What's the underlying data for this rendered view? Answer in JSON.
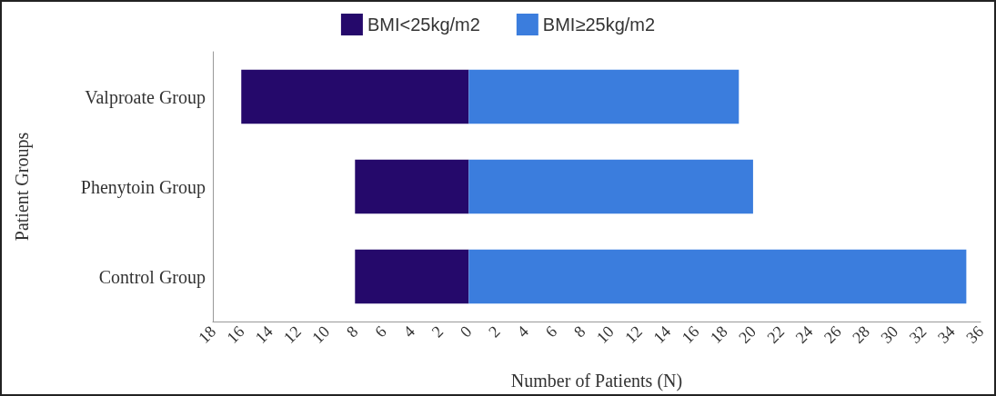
{
  "chart_data": {
    "type": "bar",
    "orientation": "horizontal",
    "stacked": true,
    "categories": [
      "Valproate Group",
      "Phenytoin Group",
      "Control Group"
    ],
    "series": [
      {
        "name": "BMI<25kg/m2",
        "color": "#25096b",
        "values": [
          -16,
          -8,
          -8
        ]
      },
      {
        "name": "BMI≥25kg/m2",
        "color": "#3b7ddd",
        "values": [
          19,
          20,
          35
        ]
      }
    ],
    "xlabel": "Number of Patients (N)",
    "ylabel": "Patient Groups",
    "xlim": [
      -18,
      36
    ],
    "xticks": [
      {
        "value": -18,
        "label": "18"
      },
      {
        "value": -16,
        "label": "16"
      },
      {
        "value": -14,
        "label": "14"
      },
      {
        "value": -12,
        "label": "12"
      },
      {
        "value": -10,
        "label": "10"
      },
      {
        "value": -8,
        "label": "8"
      },
      {
        "value": -6,
        "label": "6"
      },
      {
        "value": -4,
        "label": "4"
      },
      {
        "value": -2,
        "label": "2"
      },
      0,
      2,
      4,
      6,
      8,
      10,
      12,
      14,
      16,
      18,
      20,
      22,
      24,
      26,
      28,
      30,
      32,
      34,
      36
    ],
    "grid": false,
    "legend": "top"
  }
}
